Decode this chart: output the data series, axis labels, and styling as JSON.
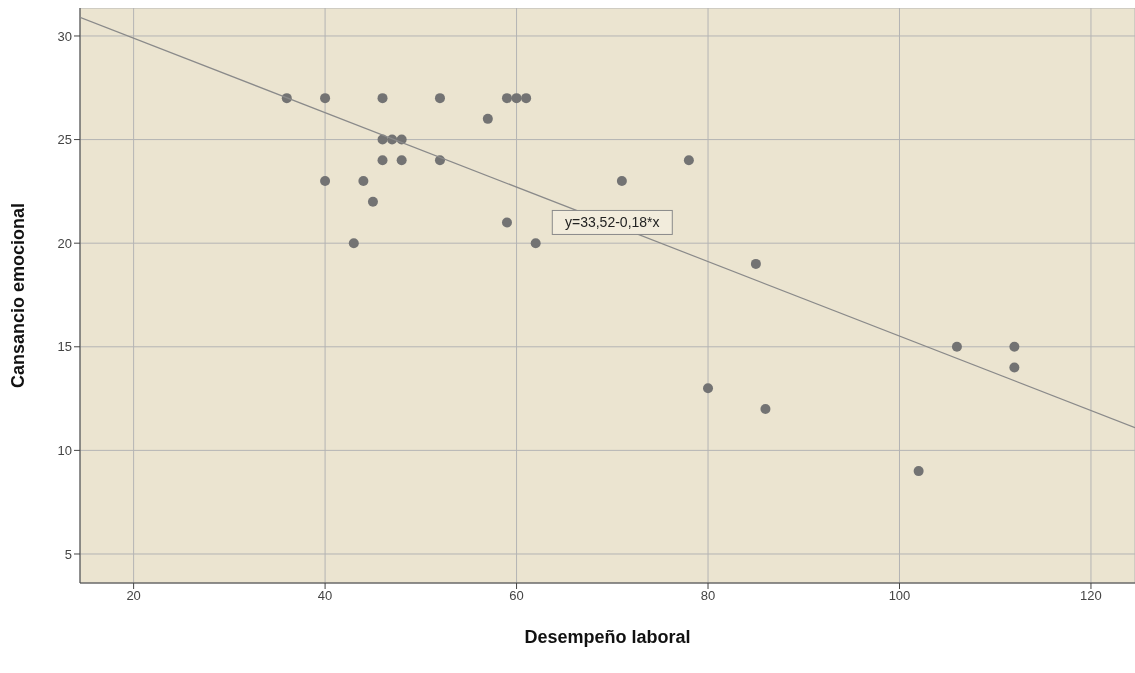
{
  "chart_data": {
    "type": "scatter",
    "xlabel": "Desempeño laboral",
    "ylabel": "Cansancio emocional",
    "xlim": [
      14.4,
      124.6
    ],
    "ylim": [
      3.6,
      31.35
    ],
    "xticks": [
      20,
      40,
      60,
      80,
      100,
      120
    ],
    "yticks": [
      5,
      10,
      15,
      20,
      25,
      30
    ],
    "grid": true,
    "marker": "circle",
    "series": [
      {
        "color": "#737373",
        "x": [
          36,
          40,
          46,
          52,
          59,
          60,
          61,
          57,
          46,
          47,
          48,
          46,
          48,
          52,
          78,
          40,
          44,
          71,
          45,
          59,
          43,
          62,
          85,
          106,
          112,
          112,
          80,
          86,
          102
        ],
        "values": [
          27,
          27,
          27,
          27,
          27,
          27,
          27,
          26,
          25,
          25,
          25,
          24,
          24,
          24,
          24,
          23,
          23,
          23,
          22,
          21,
          20,
          20,
          19,
          15,
          15,
          14,
          13,
          12,
          9
        ]
      },
      {
        "type": "line",
        "marker": "none",
        "color": "#8a8a8a",
        "x": [
          14.4,
          124.6
        ],
        "values": [
          30.9,
          11.1
        ]
      }
    ],
    "annotations": [
      {
        "text": "y=33,52-0,18*x",
        "x": 70,
        "y": 21
      }
    ]
  }
}
